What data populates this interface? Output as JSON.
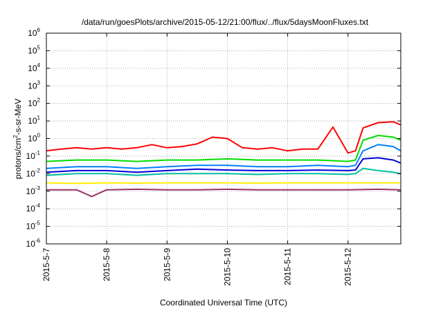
{
  "chart_data": {
    "type": "line",
    "title": "/data/run/goesPlots/archive/2015-05-12/21:00/flux/../flux/5daysMoonFluxes.txt",
    "xlabel": "Coordinated Universal Time (UTC)",
    "ylabel_parts": [
      "protons/cm",
      "2",
      "-s-sr-MeV"
    ],
    "x_domain": [
      "2015-05-07",
      "2015-05-12 21:00"
    ],
    "x_ticks": [
      {
        "date": "2015-05-07",
        "label": "2015-5-7"
      },
      {
        "date": "2015-05-08",
        "label": "2015-5-8"
      },
      {
        "date": "2015-05-09",
        "label": "2015-5-9"
      },
      {
        "date": "2015-05-10",
        "label": "2015-5-10"
      },
      {
        "date": "2015-05-11",
        "label": "2015-5-11"
      },
      {
        "date": "2015-05-12",
        "label": "2015-5-12"
      }
    ],
    "y_scale": "log",
    "ylim": [
      1e-06,
      1000000.0
    ],
    "y_ticks": [
      {
        "value": 1e-06,
        "base": "10",
        "exp": "-6"
      },
      {
        "value": 1e-05,
        "base": "10",
        "exp": "-5"
      },
      {
        "value": 0.0001,
        "base": "10",
        "exp": "-4"
      },
      {
        "value": 0.001,
        "base": "10",
        "exp": "-3"
      },
      {
        "value": 0.01,
        "base": "10",
        "exp": "-2"
      },
      {
        "value": 0.1,
        "base": "10",
        "exp": "-1"
      },
      {
        "value": 1,
        "base": "10",
        "exp": "0"
      },
      {
        "value": 10,
        "base": "10",
        "exp": "1"
      },
      {
        "value": 100,
        "base": "10",
        "exp": "2"
      },
      {
        "value": 1000,
        "base": "10",
        "exp": "3"
      },
      {
        "value": 10000,
        "base": "10",
        "exp": "4"
      },
      {
        "value": 100000,
        "base": "10",
        "exp": "5"
      },
      {
        "value": 1000000,
        "base": "10",
        "exp": "6"
      }
    ],
    "grid": true,
    "series": [
      {
        "color": "#ff0000",
        "x": [
          "2015-05-07 00:00",
          "2015-05-07 06:00",
          "2015-05-07 12:00",
          "2015-05-07 18:00",
          "2015-05-08 00:00",
          "2015-05-08 06:00",
          "2015-05-08 12:00",
          "2015-05-08 18:00",
          "2015-05-09 00:00",
          "2015-05-09 06:00",
          "2015-05-09 12:00",
          "2015-05-09 18:00",
          "2015-05-10 00:00",
          "2015-05-10 06:00",
          "2015-05-10 12:00",
          "2015-05-10 18:00",
          "2015-05-11 00:00",
          "2015-05-11 06:00",
          "2015-05-11 12:00",
          "2015-05-11 18:00",
          "2015-05-12 00:00",
          "2015-05-12 03:00",
          "2015-05-12 06:00",
          "2015-05-12 12:00",
          "2015-05-12 18:00",
          "2015-05-12 21:00"
        ],
        "values": [
          0.2,
          0.25,
          0.3,
          0.25,
          0.3,
          0.25,
          0.3,
          0.45,
          0.3,
          0.35,
          0.5,
          1.2,
          1.0,
          0.3,
          0.25,
          0.3,
          0.2,
          0.25,
          0.25,
          4.5,
          0.15,
          0.2,
          4,
          8,
          9,
          6
        ]
      },
      {
        "color": "#00dd00",
        "x": [
          "2015-05-07 00:00",
          "2015-05-07 12:00",
          "2015-05-08 00:00",
          "2015-05-08 12:00",
          "2015-05-09 00:00",
          "2015-05-09 12:00",
          "2015-05-10 00:00",
          "2015-05-10 12:00",
          "2015-05-11 00:00",
          "2015-05-11 12:00",
          "2015-05-12 00:00",
          "2015-05-12 03:00",
          "2015-05-12 06:00",
          "2015-05-12 12:00",
          "2015-05-12 18:00",
          "2015-05-12 21:00"
        ],
        "values": [
          0.05,
          0.06,
          0.06,
          0.05,
          0.06,
          0.06,
          0.07,
          0.06,
          0.06,
          0.06,
          0.05,
          0.06,
          0.8,
          1.5,
          1.2,
          0.8
        ]
      },
      {
        "color": "#0080ff",
        "x": [
          "2015-05-07 00:00",
          "2015-05-07 12:00",
          "2015-05-08 00:00",
          "2015-05-08 12:00",
          "2015-05-09 00:00",
          "2015-05-09 12:00",
          "2015-05-10 00:00",
          "2015-05-10 12:00",
          "2015-05-11 00:00",
          "2015-05-11 12:00",
          "2015-05-12 00:00",
          "2015-05-12 03:00",
          "2015-05-12 06:00",
          "2015-05-12 12:00",
          "2015-05-12 18:00",
          "2015-05-12 21:00"
        ],
        "values": [
          0.02,
          0.025,
          0.025,
          0.02,
          0.025,
          0.03,
          0.03,
          0.025,
          0.025,
          0.03,
          0.025,
          0.03,
          0.2,
          0.45,
          0.35,
          0.2
        ]
      },
      {
        "color": "#0000dd",
        "x": [
          "2015-05-07 00:00",
          "2015-05-07 12:00",
          "2015-05-08 00:00",
          "2015-05-08 12:00",
          "2015-05-09 00:00",
          "2015-05-09 12:00",
          "2015-05-10 00:00",
          "2015-05-10 12:00",
          "2015-05-11 00:00",
          "2015-05-11 12:00",
          "2015-05-12 00:00",
          "2015-05-12 03:00",
          "2015-05-12 06:00",
          "2015-05-12 12:00",
          "2015-05-12 18:00",
          "2015-05-12 21:00"
        ],
        "values": [
          0.012,
          0.015,
          0.015,
          0.012,
          0.015,
          0.018,
          0.016,
          0.015,
          0.015,
          0.016,
          0.015,
          0.016,
          0.07,
          0.08,
          0.06,
          0.04
        ]
      },
      {
        "color": "#00c0a0",
        "x": [
          "2015-05-07 00:00",
          "2015-05-07 12:00",
          "2015-05-08 00:00",
          "2015-05-08 12:00",
          "2015-05-09 00:00",
          "2015-05-09 12:00",
          "2015-05-10 00:00",
          "2015-05-10 12:00",
          "2015-05-11 00:00",
          "2015-05-11 12:00",
          "2015-05-12 00:00",
          "2015-05-12 03:00",
          "2015-05-12 06:00",
          "2015-05-12 12:00",
          "2015-05-12 18:00",
          "2015-05-12 21:00"
        ],
        "values": [
          0.008,
          0.01,
          0.01,
          0.008,
          0.01,
          0.01,
          0.01,
          0.009,
          0.01,
          0.01,
          0.009,
          0.01,
          0.02,
          0.015,
          0.012,
          0.01
        ]
      },
      {
        "color": "#ffee00",
        "x": [
          "2015-05-07 00:00",
          "2015-05-07 12:00",
          "2015-05-08 00:00",
          "2015-05-08 12:00",
          "2015-05-09 00:00",
          "2015-05-09 12:00",
          "2015-05-10 00:00",
          "2015-05-10 12:00",
          "2015-05-11 00:00",
          "2015-05-11 12:00",
          "2015-05-12 00:00",
          "2015-05-12 12:00",
          "2015-05-12 21:00"
        ],
        "values": [
          0.003,
          0.0028,
          0.003,
          0.0029,
          0.003,
          0.003,
          0.003,
          0.0029,
          0.003,
          0.003,
          0.003,
          0.003,
          0.003
        ]
      },
      {
        "color": "#993366",
        "x": [
          "2015-05-07 00:00",
          "2015-05-07 12:00",
          "2015-05-07 18:00",
          "2015-05-08 00:00",
          "2015-05-08 12:00",
          "2015-05-09 00:00",
          "2015-05-09 12:00",
          "2015-05-10 00:00",
          "2015-05-10 12:00",
          "2015-05-11 00:00",
          "2015-05-11 12:00",
          "2015-05-12 00:00",
          "2015-05-12 12:00",
          "2015-05-12 21:00"
        ],
        "values": [
          0.0012,
          0.0012,
          0.0005,
          0.0012,
          0.0013,
          0.0012,
          0.0012,
          0.0013,
          0.0012,
          0.0012,
          0.0012,
          0.0012,
          0.0013,
          0.0012
        ]
      }
    ]
  }
}
